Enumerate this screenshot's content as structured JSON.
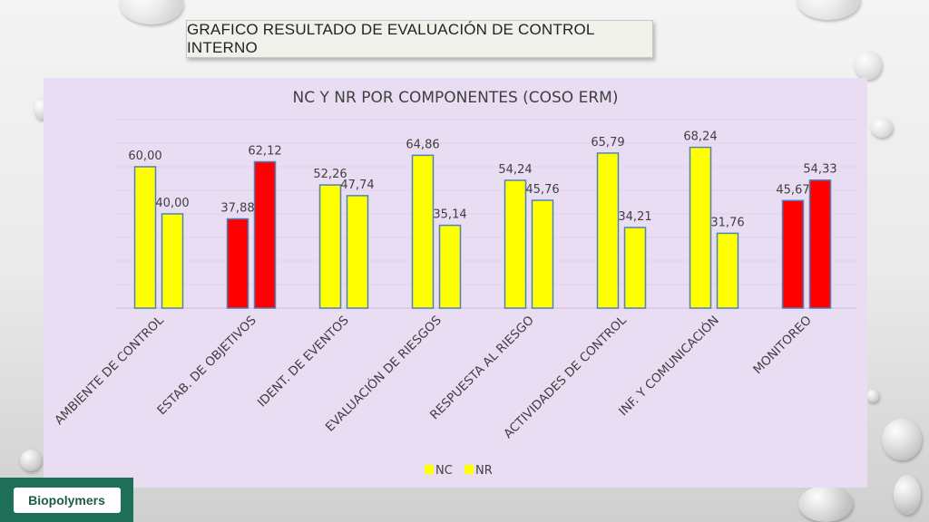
{
  "slide_title": "GRAFICO RESULTADO DE EVALUACIÓN DE CONTROL INTERNO",
  "logo_text": "Biopolymers",
  "colors": {
    "yellow": "#ffff00",
    "red": "#ff0000",
    "panel_bg": "#e9ddf3",
    "logo_bg": "#1d6f57"
  },
  "chart_data": {
    "type": "bar",
    "title": "NC Y NR POR COMPONENTES (COSO ERM)",
    "categories": [
      "AMBIENTE DE CONTROL",
      "ESTAB. DE OBJETIVOS",
      "IDENT. DE EVENTOS",
      "EVALUACIÓN DE RIESGOS",
      "RESPUESTA AL RIESGO",
      "ACTIVIDADES DE CONTROL",
      "INF. Y COMUNICACIÓN",
      "MONITOREO"
    ],
    "series": [
      {
        "name": "NC",
        "values": [
          60.0,
          37.88,
          52.26,
          64.86,
          54.24,
          65.79,
          68.24,
          45.67
        ],
        "labels": [
          "60,00",
          "37,88",
          "52,26",
          "64,86",
          "54,24",
          "65,79",
          "68,24",
          "45,67"
        ],
        "colors": [
          "#ffff00",
          "#ff0000",
          "#ffff00",
          "#ffff00",
          "#ffff00",
          "#ffff00",
          "#ffff00",
          "#ff0000"
        ]
      },
      {
        "name": "NR",
        "values": [
          40.0,
          62.12,
          47.74,
          35.14,
          45.76,
          34.21,
          31.76,
          54.33
        ],
        "labels": [
          "40,00",
          "62,12",
          "47,74",
          "35,14",
          "45,76",
          "34,21",
          "31,76",
          "54,33"
        ],
        "colors": [
          "#ffff00",
          "#ff0000",
          "#ffff00",
          "#ffff00",
          "#ffff00",
          "#ffff00",
          "#ffff00",
          "#ff0000"
        ]
      }
    ],
    "ylim": [
      0,
      80
    ],
    "grid": true,
    "legend_position": "bottom",
    "legend_color": "#ffff00"
  }
}
